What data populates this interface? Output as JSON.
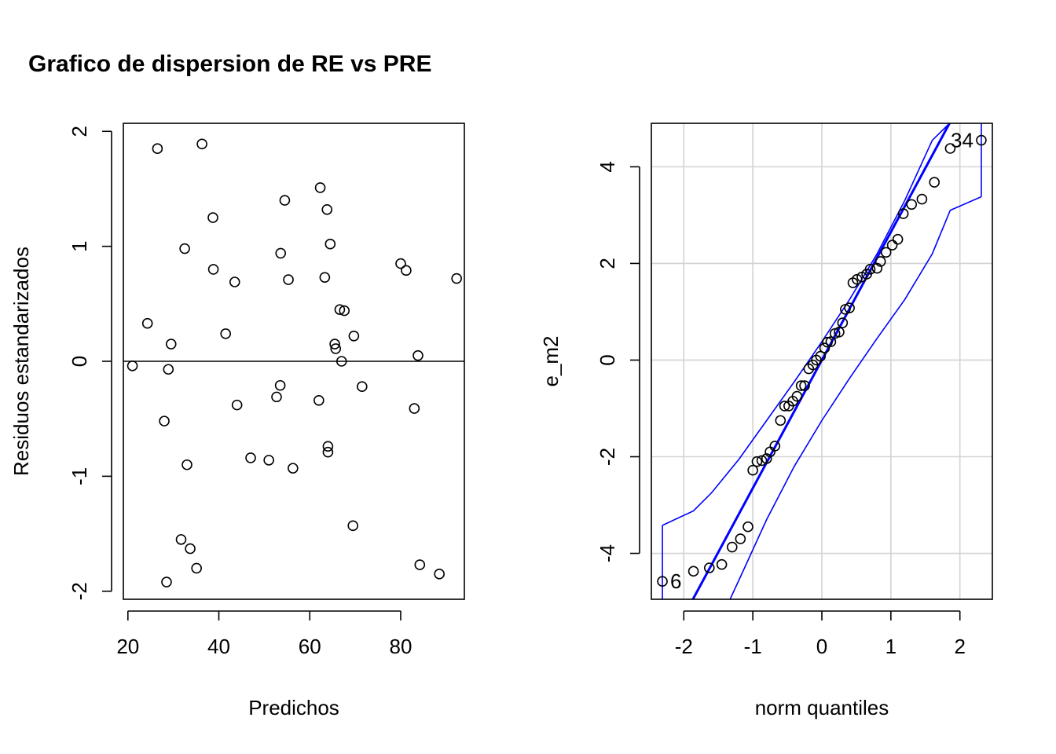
{
  "chart_data": [
    {
      "type": "scatter",
      "title": "Grafico de dispersion de RE vs PRE",
      "xlabel": "Predichos",
      "ylabel": "Residuos estandarizados",
      "xlim": [
        19,
        94
      ],
      "ylim": [
        -2.07,
        2.07
      ],
      "xticks": [
        "20",
        "40",
        "60",
        "80"
      ],
      "yticks": [
        "-2",
        "-1",
        "0",
        "1",
        "2"
      ],
      "hline": 0,
      "points": [
        {
          "x": 21.0,
          "y": -0.04
        },
        {
          "x": 24.3,
          "y": 0.33
        },
        {
          "x": 26.5,
          "y": 1.85
        },
        {
          "x": 28.0,
          "y": -0.52
        },
        {
          "x": 28.5,
          "y": -1.92
        },
        {
          "x": 28.9,
          "y": -0.07
        },
        {
          "x": 29.5,
          "y": 0.15
        },
        {
          "x": 31.7,
          "y": -1.55
        },
        {
          "x": 32.5,
          "y": 0.98
        },
        {
          "x": 33.0,
          "y": -0.9
        },
        {
          "x": 33.7,
          "y": -1.63
        },
        {
          "x": 35.1,
          "y": -1.8
        },
        {
          "x": 36.3,
          "y": 1.89
        },
        {
          "x": 38.7,
          "y": 1.25
        },
        {
          "x": 38.8,
          "y": 0.8
        },
        {
          "x": 41.5,
          "y": 0.24
        },
        {
          "x": 43.5,
          "y": 0.69
        },
        {
          "x": 44.0,
          "y": -0.38
        },
        {
          "x": 47.0,
          "y": -0.84
        },
        {
          "x": 51.0,
          "y": -0.86
        },
        {
          "x": 52.7,
          "y": -0.31
        },
        {
          "x": 53.5,
          "y": -0.21
        },
        {
          "x": 53.6,
          "y": 0.94
        },
        {
          "x": 54.5,
          "y": 1.4
        },
        {
          "x": 55.3,
          "y": 0.71
        },
        {
          "x": 56.3,
          "y": -0.93
        },
        {
          "x": 62.0,
          "y": -0.34
        },
        {
          "x": 62.3,
          "y": 1.51
        },
        {
          "x": 63.3,
          "y": 0.73
        },
        {
          "x": 63.8,
          "y": 1.32
        },
        {
          "x": 64.0,
          "y": -0.74
        },
        {
          "x": 64.0,
          "y": -0.79
        },
        {
          "x": 64.5,
          "y": 1.02
        },
        {
          "x": 65.5,
          "y": 0.15
        },
        {
          "x": 65.7,
          "y": 0.11
        },
        {
          "x": 66.6,
          "y": 0.45
        },
        {
          "x": 67.0,
          "y": 0.0
        },
        {
          "x": 67.6,
          "y": 0.44
        },
        {
          "x": 69.5,
          "y": -1.43
        },
        {
          "x": 69.7,
          "y": 0.22
        },
        {
          "x": 71.5,
          "y": -0.22
        },
        {
          "x": 80.0,
          "y": 0.85
        },
        {
          "x": 81.2,
          "y": 0.79
        },
        {
          "x": 83.0,
          "y": -0.41
        },
        {
          "x": 83.8,
          "y": 0.05
        },
        {
          "x": 84.2,
          "y": -1.77
        },
        {
          "x": 88.5,
          "y": -1.85
        },
        {
          "x": 92.3,
          "y": 0.72
        }
      ]
    },
    {
      "type": "scatter",
      "subtype": "qqplot",
      "xlabel": "norm quantiles",
      "ylabel": "e_m2",
      "xlim": [
        -2.47,
        2.47
      ],
      "ylim": [
        -4.95,
        4.9
      ],
      "xticks": [
        "-2",
        "-1",
        "0",
        "1",
        "2"
      ],
      "yticks": [
        "-4",
        "-2",
        "0",
        "2",
        "4"
      ],
      "grid": true,
      "reference_line": {
        "intercept": 0.0,
        "slope": 2.65,
        "color": "#0000FF"
      },
      "envelope_color": "#0000FF",
      "envelope_upper": [
        {
          "x": -2.31,
          "y": -3.42
        },
        {
          "x": -1.86,
          "y": -3.12
        },
        {
          "x": -1.6,
          "y": -2.75
        },
        {
          "x": -1.2,
          "y": -2.05
        },
        {
          "x": -0.8,
          "y": -1.25
        },
        {
          "x": -0.4,
          "y": -0.45
        },
        {
          "x": 0.0,
          "y": 0.38
        },
        {
          "x": 0.4,
          "y": 1.25
        },
        {
          "x": 0.8,
          "y": 2.2
        },
        {
          "x": 1.2,
          "y": 3.3
        },
        {
          "x": 1.6,
          "y": 4.55
        },
        {
          "x": 1.85,
          "y": 5.0
        }
      ],
      "envelope_lower": [
        {
          "x": -1.33,
          "y": -5.0
        },
        {
          "x": -1.2,
          "y": -4.55
        },
        {
          "x": -0.8,
          "y": -3.3
        },
        {
          "x": -0.4,
          "y": -2.2
        },
        {
          "x": 0.0,
          "y": -1.25
        },
        {
          "x": 0.4,
          "y": -0.38
        },
        {
          "x": 0.8,
          "y": 0.45
        },
        {
          "x": 1.2,
          "y": 1.25
        },
        {
          "x": 1.6,
          "y": 2.2
        },
        {
          "x": 1.86,
          "y": 3.1
        },
        {
          "x": 2.31,
          "y": 3.38
        }
      ],
      "envelope_ends": {
        "left_x": -2.31,
        "right_x": 2.31
      },
      "points": [
        {
          "x": -2.31,
          "y": -4.58
        },
        {
          "x": -1.86,
          "y": -4.37
        },
        {
          "x": -1.63,
          "y": -4.3
        },
        {
          "x": -1.45,
          "y": -4.23
        },
        {
          "x": -1.3,
          "y": -3.87
        },
        {
          "x": -1.18,
          "y": -3.7
        },
        {
          "x": -1.07,
          "y": -3.45
        },
        {
          "x": -1.0,
          "y": -2.28
        },
        {
          "x": -0.94,
          "y": -2.1
        },
        {
          "x": -0.87,
          "y": -2.08
        },
        {
          "x": -0.8,
          "y": -2.04
        },
        {
          "x": -0.75,
          "y": -1.9
        },
        {
          "x": -0.68,
          "y": -1.78
        },
        {
          "x": -0.6,
          "y": -1.25
        },
        {
          "x": -0.54,
          "y": -0.95
        },
        {
          "x": -0.48,
          "y": -0.95
        },
        {
          "x": -0.42,
          "y": -0.85
        },
        {
          "x": -0.36,
          "y": -0.75
        },
        {
          "x": -0.3,
          "y": -0.53
        },
        {
          "x": -0.25,
          "y": -0.53
        },
        {
          "x": -0.19,
          "y": -0.18
        },
        {
          "x": -0.13,
          "y": -0.1
        },
        {
          "x": -0.08,
          "y": 0.0
        },
        {
          "x": -0.02,
          "y": 0.08
        },
        {
          "x": 0.04,
          "y": 0.25
        },
        {
          "x": 0.08,
          "y": 0.37
        },
        {
          "x": 0.13,
          "y": 0.38
        },
        {
          "x": 0.19,
          "y": 0.55
        },
        {
          "x": 0.25,
          "y": 0.58
        },
        {
          "x": 0.3,
          "y": 0.77
        },
        {
          "x": 0.34,
          "y": 1.05
        },
        {
          "x": 0.4,
          "y": 1.08
        },
        {
          "x": 0.45,
          "y": 1.6
        },
        {
          "x": 0.51,
          "y": 1.67
        },
        {
          "x": 0.58,
          "y": 1.72
        },
        {
          "x": 0.65,
          "y": 1.78
        },
        {
          "x": 0.7,
          "y": 1.88
        },
        {
          "x": 0.8,
          "y": 1.9
        },
        {
          "x": 0.85,
          "y": 2.04
        },
        {
          "x": 0.93,
          "y": 2.23
        },
        {
          "x": 1.02,
          "y": 2.38
        },
        {
          "x": 1.1,
          "y": 2.5
        },
        {
          "x": 1.18,
          "y": 3.03
        },
        {
          "x": 1.3,
          "y": 3.22
        },
        {
          "x": 1.45,
          "y": 3.33
        },
        {
          "x": 1.63,
          "y": 3.68
        },
        {
          "x": 1.86,
          "y": 4.38
        },
        {
          "x": 2.31,
          "y": 4.55
        }
      ],
      "point_labels": [
        {
          "text": "6",
          "x": -2.31,
          "y": -4.58,
          "side": "right"
        },
        {
          "text": "34",
          "x": 2.31,
          "y": 4.55,
          "side": "left"
        }
      ]
    }
  ]
}
